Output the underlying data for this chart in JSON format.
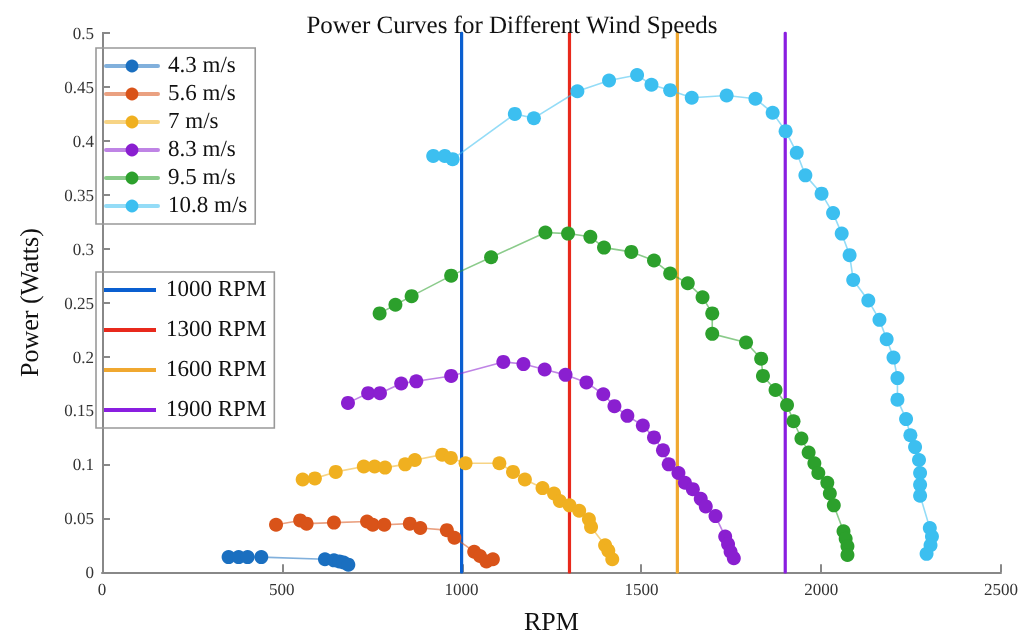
{
  "chart_data": {
    "type": "line",
    "title": "Power Curves for Different Wind Speeds",
    "xlabel": "RPM",
    "ylabel": "Power (Watts)",
    "xlim": [
      0,
      2500
    ],
    "xticks": [
      0,
      500,
      1000,
      1500,
      2000,
      2500
    ],
    "ylim": [
      0,
      0.5
    ],
    "yticks": [
      0,
      0.05,
      0.1,
      0.15,
      0.2,
      0.25,
      0.3,
      0.35,
      0.4,
      0.45,
      0.5
    ],
    "grid": false,
    "legend": "top left",
    "marker": "circle",
    "line_style": "solid",
    "series": [
      {
        "name": "4.3 m/s",
        "color": "#1a6fc0",
        "x": [
          352,
          380,
          405,
          443,
          620,
          645,
          660,
          672,
          685
        ],
        "values": [
          0.014,
          0.014,
          0.014,
          0.014,
          0.012,
          0.011,
          0.01,
          0.009,
          0.007
        ]
      },
      {
        "name": "5.6 m/s",
        "color": "#d95319",
        "x": [
          484,
          551,
          569,
          645,
          737,
          753,
          785,
          856,
          885,
          959,
          980,
          1035,
          1051,
          1069,
          1087
        ],
        "values": [
          0.044,
          0.048,
          0.045,
          0.046,
          0.047,
          0.044,
          0.044,
          0.045,
          0.041,
          0.039,
          0.032,
          0.019,
          0.015,
          0.01,
          0.012
        ]
      },
      {
        "name": "7 m/s",
        "color": "#f0b020",
        "x": [
          558,
          592,
          650,
          728,
          758,
          787,
          843,
          870,
          946,
          970,
          1011,
          1105,
          1143,
          1176,
          1225,
          1257,
          1273,
          1300,
          1327,
          1354,
          1360,
          1399,
          1408,
          1419
        ],
        "values": [
          0.086,
          0.087,
          0.093,
          0.098,
          0.098,
          0.097,
          0.1,
          0.104,
          0.109,
          0.106,
          0.101,
          0.101,
          0.093,
          0.086,
          0.078,
          0.073,
          0.066,
          0.062,
          0.057,
          0.049,
          0.042,
          0.025,
          0.02,
          0.012
        ]
      },
      {
        "name": "8.3 m/s",
        "color": "#8a1fd0",
        "x": [
          684,
          740,
          773,
          832,
          874,
          971,
          1116,
          1172,
          1231,
          1289,
          1347,
          1394,
          1425,
          1461,
          1504,
          1535,
          1560,
          1576,
          1603,
          1621,
          1643,
          1665,
          1679,
          1706,
          1733,
          1741,
          1748,
          1757
        ],
        "values": [
          0.157,
          0.166,
          0.166,
          0.175,
          0.177,
          0.182,
          0.195,
          0.193,
          0.188,
          0.183,
          0.176,
          0.165,
          0.154,
          0.145,
          0.136,
          0.125,
          0.113,
          0.1,
          0.092,
          0.083,
          0.077,
          0.068,
          0.061,
          0.052,
          0.033,
          0.026,
          0.019,
          0.013
        ]
      },
      {
        "name": "9.5 m/s",
        "color": "#2ca02c",
        "x": [
          772,
          816,
          861,
          971,
          1082,
          1233,
          1296,
          1358,
          1396,
          1472,
          1535,
          1580,
          1629,
          1670,
          1697,
          1697,
          1791,
          1833,
          1838,
          1873,
          1905,
          1923,
          1945,
          1965,
          1981,
          1992,
          2017,
          2024,
          2035,
          2062,
          2068,
          2073,
          2073
        ],
        "values": [
          0.24,
          0.248,
          0.256,
          0.275,
          0.292,
          0.315,
          0.314,
          0.311,
          0.301,
          0.297,
          0.289,
          0.277,
          0.268,
          0.255,
          0.24,
          0.221,
          0.213,
          0.198,
          0.182,
          0.169,
          0.155,
          0.14,
          0.124,
          0.111,
          0.101,
          0.092,
          0.083,
          0.073,
          0.062,
          0.038,
          0.031,
          0.024,
          0.016
        ]
      },
      {
        "name": "10.8 m/s",
        "color": "#3cbff0",
        "x": [
          921,
          953,
          975,
          1148,
          1201,
          1322,
          1410,
          1488,
          1528,
          1580,
          1640,
          1737,
          1817,
          1865,
          1901,
          1932,
          1956,
          2001,
          2033,
          2057,
          2079,
          2089,
          2131,
          2162,
          2182,
          2201,
          2212,
          2212,
          2236,
          2248,
          2261,
          2272,
          2275,
          2275,
          2275,
          2302,
          2308,
          2304,
          2293
        ],
        "values": [
          0.386,
          0.386,
          0.383,
          0.425,
          0.421,
          0.446,
          0.456,
          0.461,
          0.452,
          0.447,
          0.44,
          0.442,
          0.439,
          0.426,
          0.409,
          0.389,
          0.368,
          0.351,
          0.333,
          0.314,
          0.294,
          0.271,
          0.252,
          0.234,
          0.216,
          0.199,
          0.18,
          0.16,
          0.142,
          0.127,
          0.116,
          0.104,
          0.092,
          0.081,
          0.071,
          0.041,
          0.033,
          0.025,
          0.017
        ]
      },
      {
        "name": "1000 RPM",
        "color": "#0a5fd0",
        "marker": "none",
        "x": [
          1000,
          1000
        ],
        "values": [
          0,
          0.5
        ]
      },
      {
        "name": "1300 RPM",
        "color": "#e8291c",
        "marker": "none",
        "x": [
          1300,
          1300
        ],
        "values": [
          0,
          0.5
        ]
      },
      {
        "name": "1600 RPM",
        "color": "#f0a830",
        "marker": "none",
        "x": [
          1600,
          1600
        ],
        "values": [
          0,
          0.5
        ]
      },
      {
        "name": "1900 RPM",
        "color": "#8a1ee0",
        "marker": "none",
        "x": [
          1900,
          1900
        ],
        "values": [
          0,
          0.5
        ]
      }
    ]
  }
}
